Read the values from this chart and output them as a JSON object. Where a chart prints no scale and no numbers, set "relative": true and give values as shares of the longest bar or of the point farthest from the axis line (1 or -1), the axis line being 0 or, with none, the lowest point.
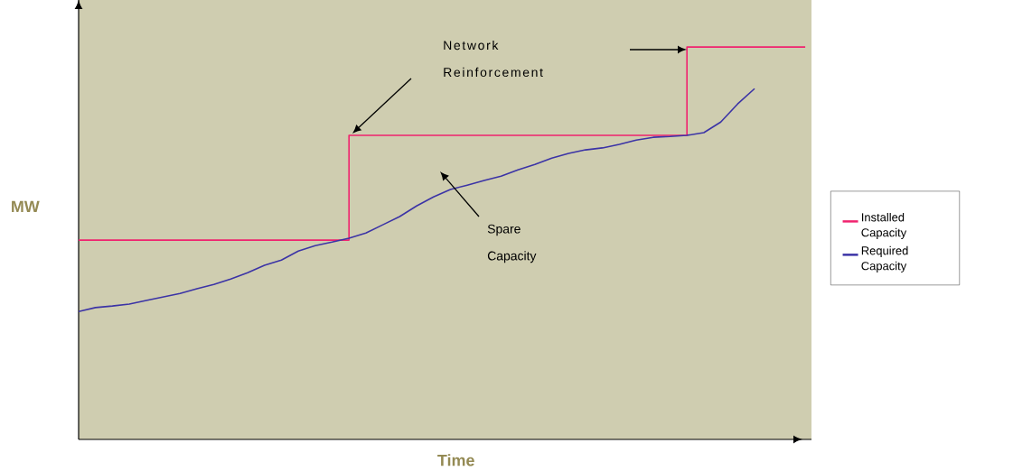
{
  "chart_data": {
    "type": "line",
    "relative": true,
    "xlabel": "Time",
    "ylabel": "MW",
    "legend": "right",
    "marker": "none",
    "categories": [
      null,
      null,
      null,
      null,
      null,
      null,
      null,
      null,
      null,
      null,
      null,
      null,
      null,
      null,
      null,
      null,
      null,
      null,
      null,
      null,
      null,
      null,
      null,
      null,
      null,
      null,
      null,
      null,
      null,
      null,
      null,
      null,
      null,
      null,
      null,
      null,
      null,
      null,
      null,
      null,
      null,
      null,
      null,
      null
    ],
    "series": [
      {
        "name": "Installed Capacity",
        "type": "step",
        "color": "#f0226e",
        "values": [
          0.508,
          0.508,
          0.508,
          0.508,
          0.508,
          0.508,
          0.508,
          0.508,
          0.508,
          0.508,
          0.508,
          0.508,
          0.508,
          0.508,
          0.508,
          0.508,
          0.775,
          0.775,
          0.775,
          0.775,
          0.775,
          0.775,
          0.775,
          0.775,
          0.775,
          0.775,
          0.775,
          0.775,
          0.775,
          0.775,
          0.775,
          0.775,
          0.775,
          0.775,
          0.775,
          0.775,
          1.0,
          1.0,
          1.0,
          1.0,
          1.0,
          1.0,
          1.0,
          1.0
        ]
      },
      {
        "name": "Required Capacity",
        "color": "#3b33a6",
        "values": [
          0.326,
          0.336,
          0.34,
          0.345,
          0.354,
          0.363,
          0.372,
          0.384,
          0.395,
          0.409,
          0.425,
          0.444,
          0.457,
          0.48,
          0.494,
          0.503,
          0.513,
          0.526,
          0.547,
          0.568,
          0.595,
          0.618,
          0.637,
          0.648,
          0.66,
          0.671,
          0.687,
          0.701,
          0.717,
          0.729,
          0.738,
          0.743,
          0.752,
          0.763,
          0.77,
          0.772,
          0.775,
          0.782,
          0.809,
          0.855,
          0.894,
          null,
          null,
          null
        ]
      }
    ],
    "annotations": [
      "Network Reinforcement",
      "Spare Capacity"
    ]
  }
}
